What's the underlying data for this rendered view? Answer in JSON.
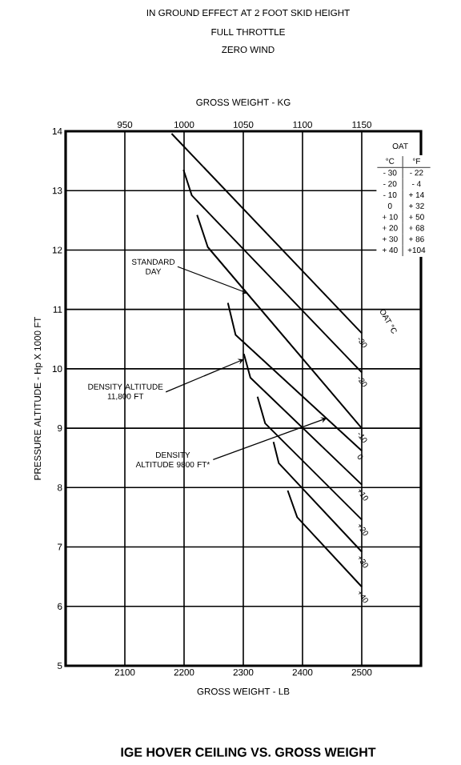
{
  "chart_data": {
    "type": "line",
    "title": "IGE HOVER CEILING VS. GROSS WEIGHT",
    "subtitle": "IN GROUND EFFECT AT 2 FOOT SKID HEIGHT",
    "xlabel": "GROSS WEIGHT - LB",
    "x2label": "GROSS WEIGHT - KG",
    "ylabel": "PRESSURE ALTITUDE - Hp X 1000 FT",
    "xlim": [
      2000,
      2600
    ],
    "xticks": [
      2100,
      2200,
      2300,
      2400,
      2500
    ],
    "x2lim": [
      900,
      1200
    ],
    "x2ticks": [
      950,
      1000,
      1050,
      1100,
      1150
    ],
    "ylim": [
      5,
      14
    ],
    "yticks": [
      5,
      6,
      7,
      8,
      9,
      10,
      11,
      12,
      13,
      14
    ],
    "grid": true,
    "legend": false,
    "series": [
      {
        "name": "-30",
        "color": "#000000",
        "x": [
          2179,
          2500
        ],
        "values": [
          13.96,
          10.6
        ]
      },
      {
        "name": "-20",
        "color": "#000000",
        "x": [
          2199,
          2213,
          2500
        ],
        "values": [
          13.35,
          12.92,
          9.94
        ]
      },
      {
        "name": "-10",
        "color": "#000000",
        "x": [
          2222,
          2240,
          2500
        ],
        "values": [
          12.59,
          12.05,
          9.0
        ]
      },
      {
        "name": "0",
        "color": "#000000",
        "x": [
          2274,
          2287,
          2500
        ],
        "values": [
          11.11,
          10.57,
          8.62
        ]
      },
      {
        "name": "+10",
        "color": "#000000",
        "x": [
          2301,
          2312,
          2500
        ],
        "values": [
          10.25,
          9.85,
          8.05
        ]
      },
      {
        "name": "+20",
        "color": "#000000",
        "x": [
          2324,
          2337,
          2500
        ],
        "values": [
          9.53,
          9.08,
          7.46
        ]
      },
      {
        "name": "+30",
        "color": "#000000",
        "x": [
          2351,
          2360,
          2500
        ],
        "values": [
          8.77,
          8.41,
          6.92
        ]
      },
      {
        "name": "+40",
        "color": "#000000",
        "x": [
          2375,
          2391,
          2500
        ],
        "values": [
          7.95,
          7.5,
          6.33
        ]
      }
    ],
    "annotations": [
      {
        "text": "STANDARD DAY",
        "x": 2308,
        "y": 11.27
      },
      {
        "text": "DENSITY ALTITUDE 11,800 FT",
        "x": 2301,
        "y": 10.16
      },
      {
        "text": "DENSITY ALTITUDE 9800 FT*",
        "x": 2441,
        "y": 9.17
      },
      "FULL THROTTLE",
      "ZERO WIND",
      "OAT °C",
      "OAT",
      "°C",
      "°F",
      "- 30",
      "- 22",
      "- 20",
      "- 4",
      "- 10",
      "+ 14",
      "0",
      "+ 32",
      "+ 10",
      "+ 50",
      "+ 20",
      "+ 68",
      "+ 30",
      "+ 86",
      "+ 40",
      "+104"
    ]
  }
}
